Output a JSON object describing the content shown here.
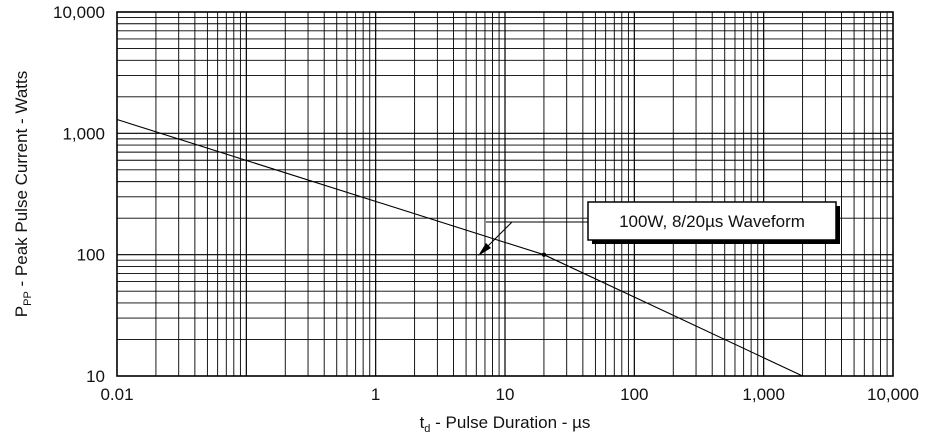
{
  "chart_data": {
    "type": "line",
    "title": "",
    "x_scale": "log",
    "y_scale": "log",
    "xlim": [
      0.01,
      10000
    ],
    "ylim": [
      10,
      10000
    ],
    "xlabel": {
      "main": "t",
      "sub": "d",
      "rest": " - Pulse Duration - µs"
    },
    "ylabel": {
      "main": "P",
      "sub": "PP",
      "rest": " - Peak Pulse Current - Watts"
    },
    "x_tick_labels": [
      {
        "value": 0.01,
        "label": "0.01"
      },
      {
        "value": 1,
        "label": "1"
      },
      {
        "value": 10,
        "label": "10"
      },
      {
        "value": 100,
        "label": "100"
      },
      {
        "value": 1000,
        "label": "1,000"
      },
      {
        "value": 10000,
        "label": "10,000"
      }
    ],
    "y_tick_labels": [
      {
        "value": 10,
        "label": "10"
      },
      {
        "value": 100,
        "label": "100"
      },
      {
        "value": 1000,
        "label": "1,000"
      },
      {
        "value": 10000,
        "label": "10,000"
      }
    ],
    "grid": true,
    "series": [
      {
        "x": [
          0.01,
          20,
          2000
        ],
        "y": [
          1300,
          100,
          10
        ]
      }
    ],
    "annotation": {
      "text": "100W, 8/20µs Waveform",
      "x": 20,
      "y": 100
    }
  }
}
